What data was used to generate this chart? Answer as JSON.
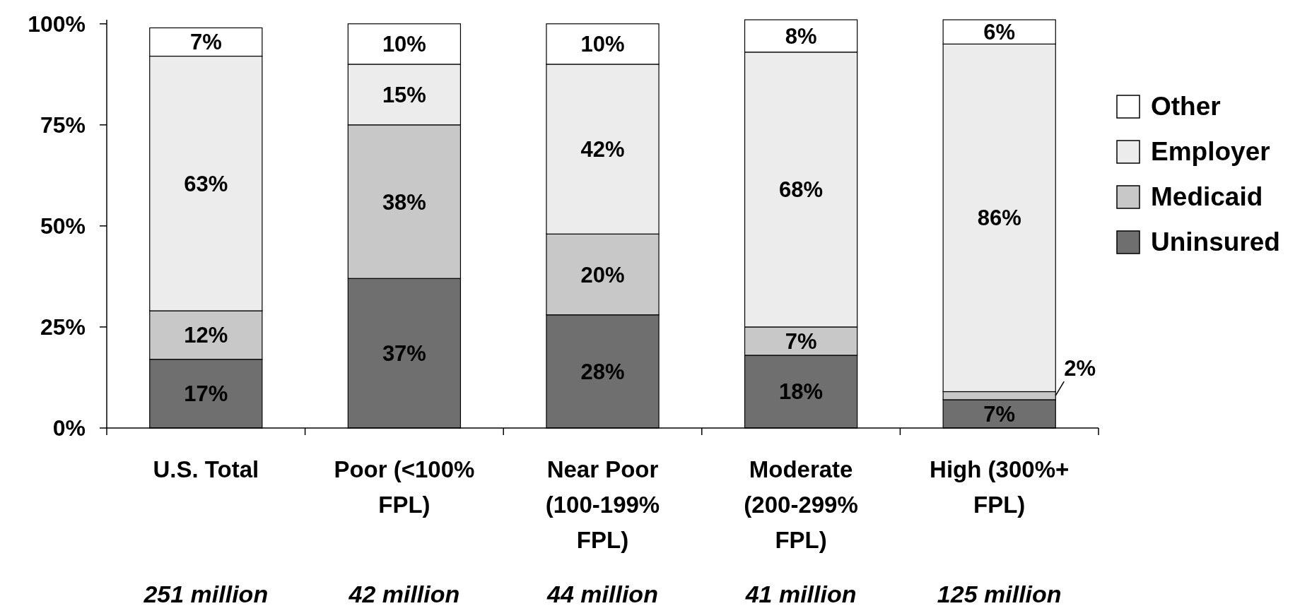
{
  "chart_data": {
    "type": "bar",
    "stacked": true,
    "categories": [
      "U.S. Total",
      "Poor (<100% FPL)",
      "Near Poor (100-199% FPL)",
      "Moderate (200-299% FPL)",
      "High (300%+ FPL)"
    ],
    "series": [
      {
        "name": "Uninsured",
        "color": "#6f6f6f",
        "values": [
          17,
          37,
          28,
          18,
          7
        ],
        "value_labels": [
          "17%",
          "37%",
          "28%",
          "18%",
          "7%"
        ]
      },
      {
        "name": "Medicaid",
        "color": "#c8c8c8",
        "values": [
          12,
          38,
          20,
          7,
          2
        ],
        "value_labels": [
          "12%",
          "38%",
          "20%",
          "7%",
          "2%"
        ]
      },
      {
        "name": "Employer",
        "color": "#ececec",
        "values": [
          63,
          15,
          42,
          68,
          86
        ],
        "value_labels": [
          "63%",
          "15%",
          "42%",
          "68%",
          "86%"
        ]
      },
      {
        "name": "Other",
        "color": "#ffffff",
        "values": [
          7,
          10,
          10,
          8,
          6
        ],
        "value_labels": [
          "7%",
          "10%",
          "10%",
          "8%",
          "6%"
        ]
      }
    ],
    "ylim": [
      0,
      101
    ],
    "yticks": [
      {
        "value": 0,
        "label": "0%"
      },
      {
        "value": 25,
        "label": "25%"
      },
      {
        "value": 50,
        "label": "50%"
      },
      {
        "value": 75,
        "label": "75%"
      },
      {
        "value": 100,
        "label": "100%"
      }
    ],
    "legend": "right",
    "grid": false,
    "annotations": [
      "251 million",
      "42 million",
      "44 million",
      "41 million",
      "125 million"
    ]
  }
}
